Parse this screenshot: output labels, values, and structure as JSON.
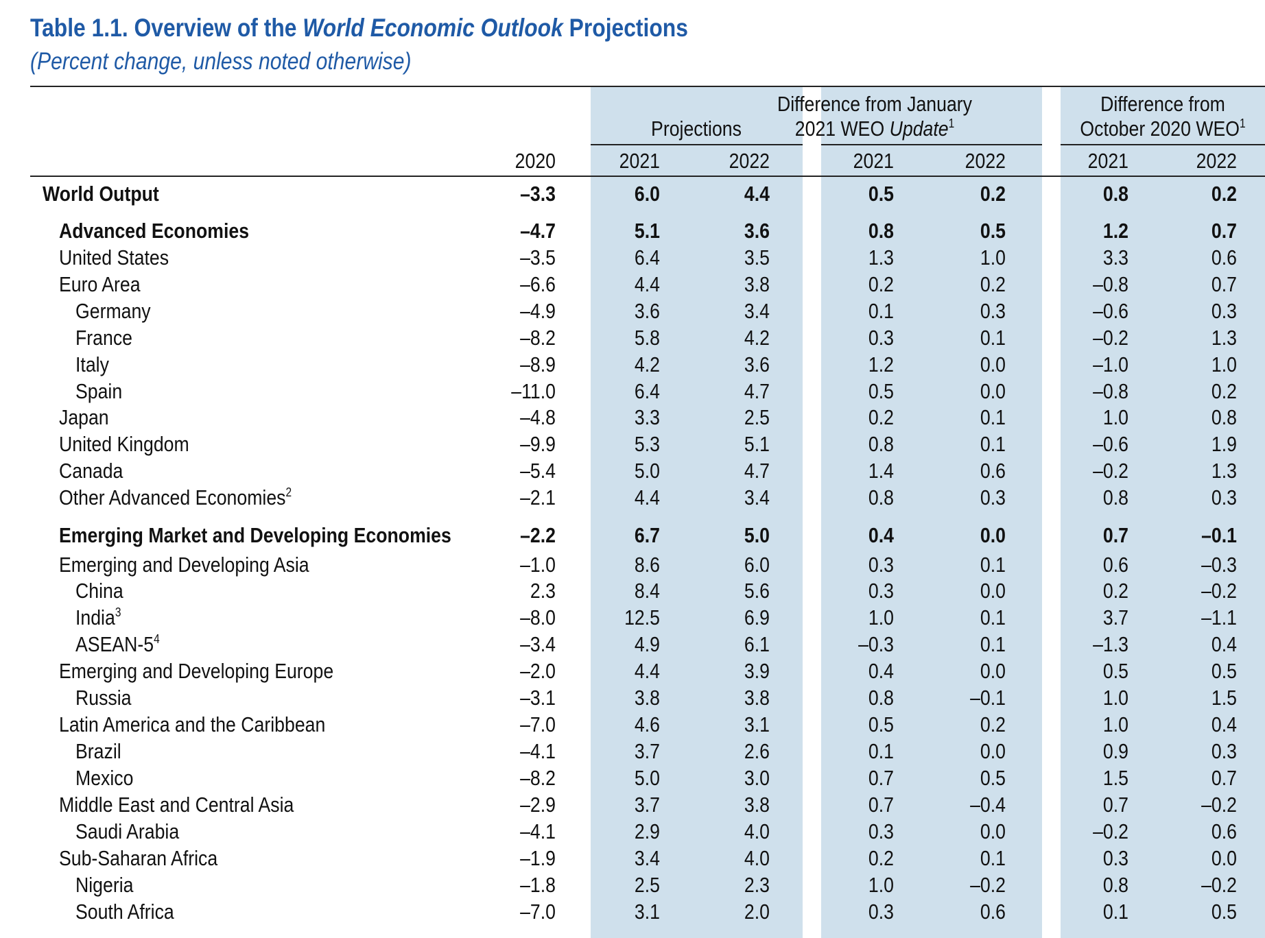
{
  "title": {
    "prefix": "Table 1.1. Overview of the ",
    "italic": "World Economic Outlook",
    "suffix": " Projections"
  },
  "subtitle": "(Percent change, unless noted otherwise)",
  "header": {
    "groups": [
      {
        "lines": [
          "Projections"
        ]
      },
      {
        "lines": [
          "Difference from January",
          "2021 WEO "
        ],
        "italic": "Update",
        "sup": "1"
      },
      {
        "lines": [
          "Difference from",
          "October 2020 WEO"
        ],
        "sup": "1"
      }
    ],
    "years": [
      "2020",
      "2021",
      "2022",
      "2021",
      "2022",
      "2021",
      "2022"
    ]
  },
  "rows": [
    {
      "label": "World Output",
      "level": 0,
      "bold": true,
      "values": [
        "–3.3",
        "6.0",
        "4.4",
        "0.5",
        "0.2",
        "0.8",
        "0.2"
      ]
    },
    {
      "label": "Advanced Economies",
      "level": 1,
      "bold": true,
      "values": [
        "–4.7",
        "5.1",
        "3.6",
        "0.8",
        "0.5",
        "1.2",
        "0.7"
      ]
    },
    {
      "label": "United States",
      "level": 1,
      "values": [
        "–3.5",
        "6.4",
        "3.5",
        "1.3",
        "1.0",
        "3.3",
        "0.6"
      ]
    },
    {
      "label": "Euro Area",
      "level": 1,
      "values": [
        "–6.6",
        "4.4",
        "3.8",
        "0.2",
        "0.2",
        "–0.8",
        "0.7"
      ]
    },
    {
      "label": "Germany",
      "level": 2,
      "values": [
        "–4.9",
        "3.6",
        "3.4",
        "0.1",
        "0.3",
        "–0.6",
        "0.3"
      ]
    },
    {
      "label": "France",
      "level": 2,
      "values": [
        "–8.2",
        "5.8",
        "4.2",
        "0.3",
        "0.1",
        "–0.2",
        "1.3"
      ]
    },
    {
      "label": "Italy",
      "level": 2,
      "values": [
        "–8.9",
        "4.2",
        "3.6",
        "1.2",
        "0.0",
        "–1.0",
        "1.0"
      ]
    },
    {
      "label": "Spain",
      "level": 2,
      "values": [
        "–11.0",
        "6.4",
        "4.7",
        "0.5",
        "0.0",
        "–0.8",
        "0.2"
      ]
    },
    {
      "label": "Japan",
      "level": 1,
      "values": [
        "–4.8",
        "3.3",
        "2.5",
        "0.2",
        "0.1",
        "1.0",
        "0.8"
      ]
    },
    {
      "label": "United Kingdom",
      "level": 1,
      "values": [
        "–9.9",
        "5.3",
        "5.1",
        "0.8",
        "0.1",
        "–0.6",
        "1.9"
      ]
    },
    {
      "label": "Canada",
      "level": 1,
      "values": [
        "–5.4",
        "5.0",
        "4.7",
        "1.4",
        "0.6",
        "–0.2",
        "1.3"
      ]
    },
    {
      "label": "Other Advanced Economies",
      "sup": "2",
      "level": 1,
      "values": [
        "–2.1",
        "4.4",
        "3.4",
        "0.8",
        "0.3",
        "0.8",
        "0.3"
      ]
    },
    {
      "label": "Emerging Market and Developing Economies",
      "level": 1,
      "bold": true,
      "values": [
        "–2.2",
        "6.7",
        "5.0",
        "0.4",
        "0.0",
        "0.7",
        "–0.1"
      ]
    },
    {
      "label": "Emerging and Developing Asia",
      "level": 1,
      "values": [
        "–1.0",
        "8.6",
        "6.0",
        "0.3",
        "0.1",
        "0.6",
        "–0.3"
      ]
    },
    {
      "label": "China",
      "level": 2,
      "values": [
        "2.3",
        "8.4",
        "5.6",
        "0.3",
        "0.0",
        "0.2",
        "–0.2"
      ]
    },
    {
      "label": "India",
      "sup": "3",
      "level": 2,
      "values": [
        "–8.0",
        "12.5",
        "6.9",
        "1.0",
        "0.1",
        "3.7",
        "–1.1"
      ]
    },
    {
      "label": "ASEAN-5",
      "sup": "4",
      "level": 2,
      "values": [
        "–3.4",
        "4.9",
        "6.1",
        "–0.3",
        "0.1",
        "–1.3",
        "0.4"
      ]
    },
    {
      "label": "Emerging and Developing Europe",
      "level": 1,
      "values": [
        "–2.0",
        "4.4",
        "3.9",
        "0.4",
        "0.0",
        "0.5",
        "0.5"
      ]
    },
    {
      "label": "Russia",
      "level": 2,
      "values": [
        "–3.1",
        "3.8",
        "3.8",
        "0.8",
        "–0.1",
        "1.0",
        "1.5"
      ]
    },
    {
      "label": "Latin America and the Caribbean",
      "level": 1,
      "values": [
        "–7.0",
        "4.6",
        "3.1",
        "0.5",
        "0.2",
        "1.0",
        "0.4"
      ]
    },
    {
      "label": "Brazil",
      "level": 2,
      "values": [
        "–4.1",
        "3.7",
        "2.6",
        "0.1",
        "0.0",
        "0.9",
        "0.3"
      ]
    },
    {
      "label": "Mexico",
      "level": 2,
      "values": [
        "–8.2",
        "5.0",
        "3.0",
        "0.7",
        "0.5",
        "1.5",
        "0.7"
      ]
    },
    {
      "label": "Middle East and Central Asia",
      "level": 1,
      "values": [
        "–2.9",
        "3.7",
        "3.8",
        "0.7",
        "–0.4",
        "0.7",
        "–0.2"
      ]
    },
    {
      "label": "Saudi Arabia",
      "level": 2,
      "values": [
        "–4.1",
        "2.9",
        "4.0",
        "0.3",
        "0.0",
        "–0.2",
        "0.6"
      ]
    },
    {
      "label": "Sub-Saharan Africa",
      "level": 1,
      "values": [
        "–1.9",
        "3.4",
        "4.0",
        "0.2",
        "0.1",
        "0.3",
        "0.0"
      ]
    },
    {
      "label": "Nigeria",
      "level": 2,
      "values": [
        "–1.8",
        "2.5",
        "2.3",
        "1.0",
        "–0.2",
        "0.8",
        "–0.2"
      ]
    },
    {
      "label": "South Africa",
      "level": 2,
      "values": [
        "–7.0",
        "3.1",
        "2.0",
        "0.3",
        "0.6",
        "0.1",
        "0.5"
      ]
    }
  ]
}
